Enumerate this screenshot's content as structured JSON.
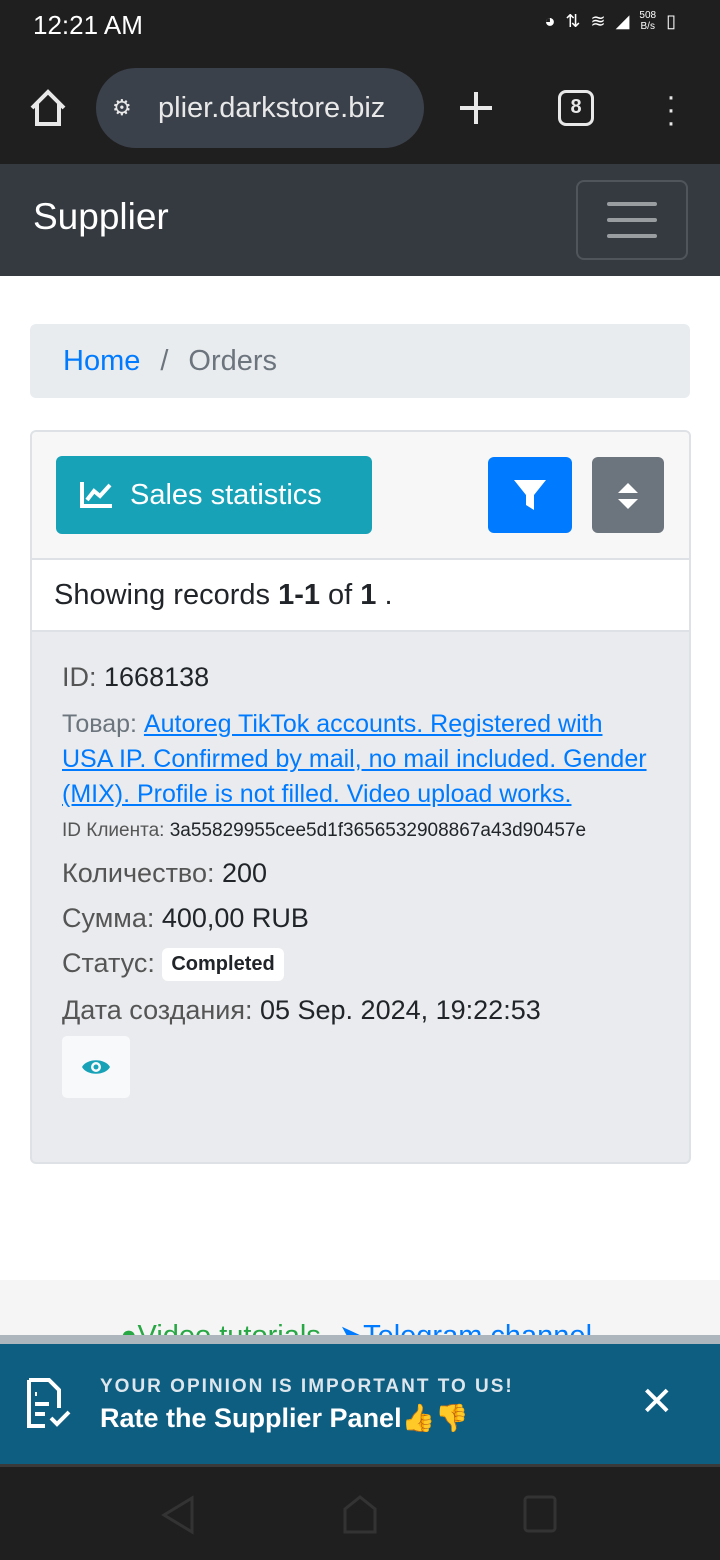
{
  "status_bar": {
    "time": "12:21 AM",
    "net_speed_value": "508",
    "net_speed_unit": "B/s"
  },
  "browser": {
    "url": "plier.darkstore.biz",
    "tab_count": "8"
  },
  "navbar": {
    "brand": "Supplier"
  },
  "breadcrumb": {
    "home": "Home",
    "separator": "/",
    "current": "Orders"
  },
  "toolbar": {
    "sales_statistics": "Sales statistics"
  },
  "summary": {
    "prefix": "Showing records ",
    "range": "1-1",
    "of": " of ",
    "total": "1",
    "suffix": " ."
  },
  "order": {
    "id_label": "ID: ",
    "id": "1668138",
    "product_label": "Товар: ",
    "product": "Autoreg TikTok accounts. Registered with USA IP. Confirmed by mail, no mail included. Gender (MIX). Profile is not filled. Video upload works.",
    "client_label": "ID Клиента: ",
    "client_id": "3a55829955cee5d1f3656532908867a43d90457e",
    "qty_label": "Количество: ",
    "qty": "200",
    "sum_label": "Сумма: ",
    "sum": "400,00 RUB",
    "status_label": "Статус: ",
    "status": "Completed",
    "date_label": "Дата создания: ",
    "date": "05 Sep. 2024, 19:22:53"
  },
  "footer": {
    "video": "Video tutorials",
    "telegram": "Telegram channel"
  },
  "banner": {
    "title": "YOUR OPINION IS IMPORTANT TO US!",
    "text": "Rate the Supplier Panel👍👎"
  },
  "colors": {
    "primary": "#007bff",
    "info": "#17a2b8",
    "secondary": "#6c757d",
    "navbar": "#343a40",
    "banner": "#0e5e82"
  }
}
